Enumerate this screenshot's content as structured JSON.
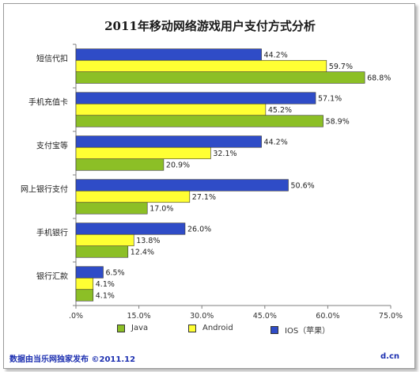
{
  "colors": {
    "ios": "#2f4cc7",
    "android": "#ffff33",
    "java": "#8cbf26",
    "footer": "#1c2fb0"
  },
  "chart_data": {
    "type": "bar",
    "orientation": "horizontal",
    "title": "2011年移动网络游戏用户支付方式分析",
    "categories": [
      "短信代扣",
      "手机充值卡",
      "支付宝等",
      "网上银行支付",
      "手机银行",
      "银行汇款"
    ],
    "series": [
      {
        "name": "IOS（苹果）",
        "key": "ios",
        "values": [
          44.2,
          57.1,
          44.2,
          50.6,
          26.0,
          6.5
        ]
      },
      {
        "name": "Android",
        "key": "android",
        "values": [
          59.7,
          45.2,
          32.1,
          27.1,
          13.8,
          4.1
        ]
      },
      {
        "name": "Java",
        "key": "java",
        "values": [
          68.8,
          58.9,
          20.9,
          17.0,
          12.4,
          4.1
        ]
      }
    ],
    "xlim": [
      0,
      75
    ],
    "xticks": [
      ".0%",
      "15.0%",
      "30.0%",
      "45.0%",
      "60.0%",
      "75.0%"
    ],
    "legend_order": [
      "Java",
      "Android",
      "IOS（苹果）"
    ],
    "legend_position": "bottom",
    "grid": false
  },
  "footer": {
    "source": "数据由当乐网独家发布  ©2011.12",
    "site": "d.cn"
  }
}
